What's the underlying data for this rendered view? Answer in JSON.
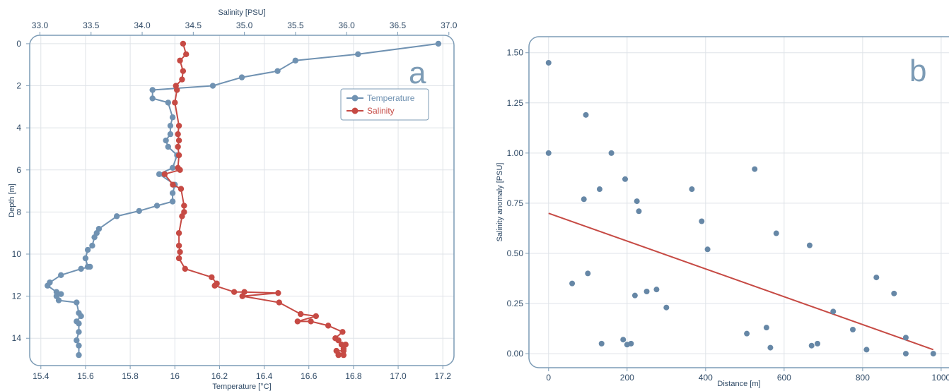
{
  "chart_data": [
    {
      "type": "line",
      "panel_label": "a",
      "xlabel": "Temperature [°C]",
      "x2label": "Salinity [PSU]",
      "ylabel": "Depth [m]",
      "xlim": [
        15.35,
        17.25
      ],
      "x2lim": [
        32.9,
        37.05
      ],
      "ylim": [
        15.3,
        -0.4
      ],
      "y_inverted": true,
      "grid": true,
      "legend_position": "top-right",
      "x_ticks": [
        {
          "value": 15.4,
          "label": "15.4"
        },
        {
          "value": 15.6,
          "label": "15.6"
        },
        {
          "value": 15.8,
          "label": "15.8"
        },
        {
          "value": 16.0,
          "label": "16"
        },
        {
          "value": 16.2,
          "label": "16.2"
        },
        {
          "value": 16.4,
          "label": "16.4"
        },
        {
          "value": 16.6,
          "label": "16.6"
        },
        {
          "value": 16.8,
          "label": "16.8"
        },
        {
          "value": 17.0,
          "label": "17.0"
        },
        {
          "value": 17.2,
          "label": "17.2"
        }
      ],
      "x2_ticks": [
        {
          "value": 33.0,
          "label": "33.0"
        },
        {
          "value": 33.5,
          "label": "33.5"
        },
        {
          "value": 34.0,
          "label": "34.0"
        },
        {
          "value": 34.5,
          "label": "34.5"
        },
        {
          "value": 35.0,
          "label": "35.0"
        },
        {
          "value": 35.5,
          "label": "35.5"
        },
        {
          "value": 36.0,
          "label": "36.0"
        },
        {
          "value": 36.5,
          "label": "36.5"
        },
        {
          "value": 37.0,
          "label": "37.0"
        }
      ],
      "y_ticks": [
        {
          "value": 0,
          "label": "0"
        },
        {
          "value": 2,
          "label": "2"
        },
        {
          "value": 4,
          "label": "4"
        },
        {
          "value": 6,
          "label": "6"
        },
        {
          "value": 8,
          "label": "8"
        },
        {
          "value": 10,
          "label": "10"
        },
        {
          "value": 12,
          "label": "12"
        },
        {
          "value": 14,
          "label": "14"
        }
      ],
      "series": [
        {
          "name": "Temperature",
          "axis": "bottom",
          "color": "#7092b2",
          "points": [
            [
              17.18,
              0.0
            ],
            [
              16.82,
              0.5
            ],
            [
              16.54,
              0.8
            ],
            [
              16.46,
              1.3
            ],
            [
              16.3,
              1.6
            ],
            [
              16.17,
              2.0
            ],
            [
              15.9,
              2.2
            ],
            [
              15.9,
              2.6
            ],
            [
              15.97,
              2.8
            ],
            [
              15.99,
              3.5
            ],
            [
              15.98,
              3.9
            ],
            [
              15.98,
              4.3
            ],
            [
              15.96,
              4.6
            ],
            [
              15.97,
              4.9
            ],
            [
              16.01,
              5.3
            ],
            [
              15.99,
              5.9
            ],
            [
              15.93,
              6.2
            ],
            [
              16.0,
              6.7
            ],
            [
              15.99,
              7.1
            ],
            [
              15.99,
              7.5
            ],
            [
              15.92,
              7.7
            ],
            [
              15.84,
              7.95
            ],
            [
              15.74,
              8.2
            ],
            [
              15.66,
              8.8
            ],
            [
              15.65,
              9.0
            ],
            [
              15.64,
              9.2
            ],
            [
              15.63,
              9.6
            ],
            [
              15.61,
              9.8
            ],
            [
              15.6,
              10.2
            ],
            [
              15.61,
              10.6
            ],
            [
              15.62,
              10.6
            ],
            [
              15.58,
              10.7
            ],
            [
              15.49,
              11.0
            ],
            [
              15.44,
              11.35
            ],
            [
              15.43,
              11.5
            ],
            [
              15.47,
              11.8
            ],
            [
              15.49,
              11.9
            ],
            [
              15.47,
              12.0
            ],
            [
              15.48,
              12.2
            ],
            [
              15.56,
              12.3
            ],
            [
              15.57,
              12.8
            ],
            [
              15.58,
              12.95
            ],
            [
              15.56,
              13.2
            ],
            [
              15.57,
              13.3
            ],
            [
              15.57,
              13.7
            ],
            [
              15.56,
              14.1
            ],
            [
              15.57,
              14.35
            ],
            [
              15.57,
              14.8
            ]
          ]
        },
        {
          "name": "Salinity",
          "axis": "top",
          "color": "#c64a44",
          "points": [
            [
              34.4,
              0.0
            ],
            [
              34.43,
              0.5
            ],
            [
              34.37,
              0.8
            ],
            [
              34.4,
              1.3
            ],
            [
              34.39,
              1.7
            ],
            [
              34.33,
              2.0
            ],
            [
              34.34,
              2.2
            ],
            [
              34.32,
              2.8
            ],
            [
              34.36,
              3.9
            ],
            [
              34.35,
              4.3
            ],
            [
              34.36,
              4.6
            ],
            [
              34.35,
              4.9
            ],
            [
              34.36,
              5.3
            ],
            [
              34.35,
              5.9
            ],
            [
              34.37,
              6.0
            ],
            [
              34.22,
              6.2
            ],
            [
              34.3,
              6.7
            ],
            [
              34.38,
              6.9
            ],
            [
              34.41,
              7.7
            ],
            [
              34.41,
              8.0
            ],
            [
              34.39,
              8.2
            ],
            [
              34.36,
              9.0
            ],
            [
              34.36,
              9.6
            ],
            [
              34.37,
              9.9
            ],
            [
              34.36,
              10.2
            ],
            [
              34.42,
              10.7
            ],
            [
              34.68,
              11.1
            ],
            [
              34.73,
              11.4
            ],
            [
              34.71,
              11.5
            ],
            [
              34.9,
              11.8
            ],
            [
              35.0,
              11.8
            ],
            [
              35.33,
              11.85
            ],
            [
              34.98,
              12.0
            ],
            [
              35.34,
              12.3
            ],
            [
              35.55,
              12.85
            ],
            [
              35.7,
              12.95
            ],
            [
              35.52,
              13.2
            ],
            [
              35.65,
              13.2
            ],
            [
              35.82,
              13.4
            ],
            [
              35.96,
              13.7
            ],
            [
              35.89,
              14.0
            ],
            [
              35.92,
              14.1
            ],
            [
              35.95,
              14.3
            ],
            [
              35.99,
              14.3
            ],
            [
              35.97,
              14.5
            ],
            [
              35.97,
              14.6
            ],
            [
              35.9,
              14.6
            ],
            [
              35.97,
              14.8
            ],
            [
              35.92,
              14.8
            ]
          ]
        }
      ]
    },
    {
      "type": "scatter",
      "panel_label": "b",
      "xlabel": "Distance [m]",
      "ylabel": "Salinity anomaly [PSU]",
      "xlim": [
        -50,
        1020
      ],
      "ylim": [
        -0.07,
        1.58
      ],
      "grid": true,
      "x_ticks": [
        {
          "value": 0,
          "label": "0"
        },
        {
          "value": 200,
          "label": "200"
        },
        {
          "value": 400,
          "label": "400"
        },
        {
          "value": 600,
          "label": "600"
        },
        {
          "value": 800,
          "label": "800"
        },
        {
          "value": 1000,
          "label": "1000"
        }
      ],
      "y_ticks": [
        {
          "value": 0.0,
          "label": "0.00"
        },
        {
          "value": 0.25,
          "label": "0.25"
        },
        {
          "value": 0.5,
          "label": "0.50"
        },
        {
          "value": 0.75,
          "label": "0.75"
        },
        {
          "value": 1.0,
          "label": "1.00"
        },
        {
          "value": 1.25,
          "label": "1.25"
        },
        {
          "value": 1.5,
          "label": "1.50"
        }
      ],
      "point_color": "#6687a6",
      "trend_color": "#c64a44",
      "trend_line": [
        [
          0,
          0.7
        ],
        [
          980,
          0.02
        ]
      ],
      "points": [
        [
          0,
          1.45
        ],
        [
          0,
          1.0
        ],
        [
          95,
          1.19
        ],
        [
          160,
          1.0
        ],
        [
          195,
          0.87
        ],
        [
          130,
          0.82
        ],
        [
          90,
          0.77
        ],
        [
          225,
          0.76
        ],
        [
          230,
          0.71
        ],
        [
          365,
          0.82
        ],
        [
          525,
          0.92
        ],
        [
          390,
          0.66
        ],
        [
          405,
          0.52
        ],
        [
          580,
          0.6
        ],
        [
          665,
          0.54
        ],
        [
          100,
          0.4
        ],
        [
          60,
          0.35
        ],
        [
          275,
          0.32
        ],
        [
          250,
          0.31
        ],
        [
          220,
          0.29
        ],
        [
          300,
          0.23
        ],
        [
          835,
          0.38
        ],
        [
          880,
          0.3
        ],
        [
          725,
          0.21
        ],
        [
          775,
          0.12
        ],
        [
          555,
          0.13
        ],
        [
          505,
          0.1
        ],
        [
          910,
          0.08
        ],
        [
          190,
          0.07
        ],
        [
          135,
          0.05
        ],
        [
          200,
          0.045
        ],
        [
          210,
          0.05
        ],
        [
          685,
          0.05
        ],
        [
          670,
          0.04
        ],
        [
          565,
          0.03
        ],
        [
          810,
          0.02
        ],
        [
          910,
          0.0
        ],
        [
          980,
          0.0
        ]
      ]
    }
  ]
}
